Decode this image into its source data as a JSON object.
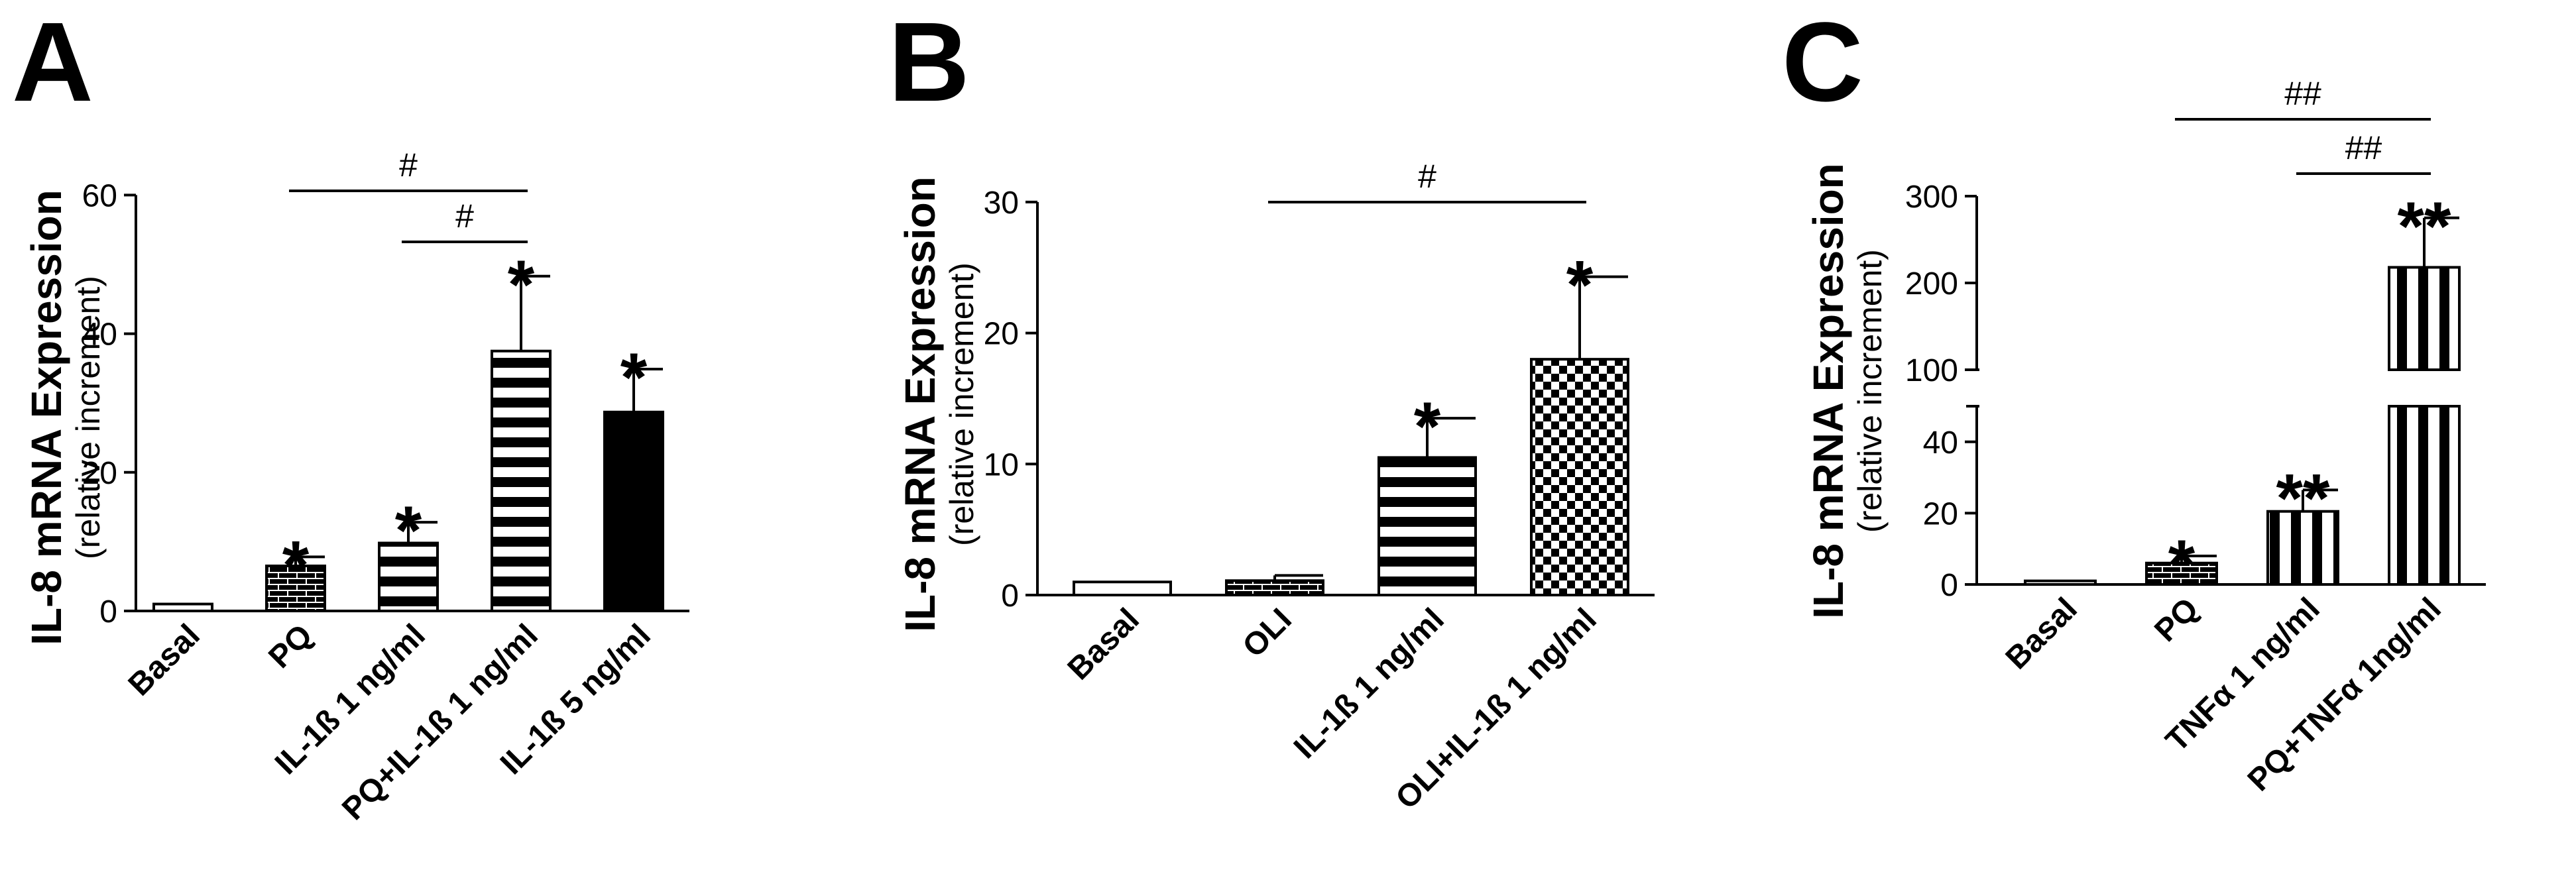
{
  "colors": {
    "ink": "#000000",
    "paper": "#ffffff"
  },
  "chart_data": [
    {
      "panel": "A",
      "type": "bar",
      "ylabel": "IL-8 mRNA Expression",
      "ysublabel": "(relative increment)",
      "ylim": [
        0,
        60
      ],
      "yticks": [
        0,
        20,
        40,
        60
      ],
      "categories": [
        "Basal",
        "PQ",
        "IL-1ß 1 ng/ml",
        "PQ+IL-1ß 1 ng/ml",
        "IL-1ß 5 ng/ml"
      ],
      "values": [
        1,
        6.5,
        9.8,
        37.5,
        28.7
      ],
      "errors": [
        0,
        1.3,
        3,
        10.8,
        6.2
      ],
      "patterns": [
        "white",
        "brick",
        "hstripe",
        "hstripe",
        "solid"
      ],
      "significance": [
        "",
        "*",
        "*",
        "*",
        "*"
      ],
      "brackets": [
        {
          "from": 1,
          "to": 3,
          "label": "#"
        },
        {
          "from": 2,
          "to": 3,
          "label": "#"
        }
      ]
    },
    {
      "panel": "B",
      "type": "bar",
      "ylabel": "IL-8 mRNA Expression",
      "ysublabel": "(relative increment)",
      "ylim": [
        0,
        30
      ],
      "yticks": [
        0,
        10,
        20,
        30
      ],
      "categories": [
        "Basal",
        "OLI",
        "IL-1ß 1 ng/ml",
        "OLI+IL-1ß 1 ng/ml"
      ],
      "values": [
        1,
        1.1,
        10.5,
        18
      ],
      "errors": [
        0,
        0.4,
        3,
        6.3
      ],
      "patterns": [
        "white",
        "brick",
        "hstripe",
        "checker"
      ],
      "significance": [
        "",
        "",
        "*",
        "*"
      ],
      "brackets": [
        {
          "from": 1,
          "to": 3,
          "label": "#"
        }
      ]
    },
    {
      "panel": "C",
      "type": "bar",
      "ylabel": "IL-8 mRNA Expression",
      "ysublabel": "(relative increment)",
      "broken_axis": {
        "lower": [
          0,
          50
        ],
        "upper": [
          100,
          300
        ]
      },
      "yticks_lower": [
        0,
        20,
        40
      ],
      "yticks_upper": [
        100,
        200,
        300
      ],
      "categories": [
        "Basal",
        "PQ",
        "TNFα 1 ng/ml",
        "PQ+TNFα 1ng/ml"
      ],
      "values": [
        1,
        6,
        20.5,
        218
      ],
      "errors": [
        0,
        2,
        6,
        57
      ],
      "patterns": [
        "white",
        "brick",
        "vstripe",
        "vstripe"
      ],
      "significance": [
        "",
        "*",
        "**",
        "**"
      ],
      "brackets": [
        {
          "from": 1,
          "to": 3,
          "label": "##"
        },
        {
          "from": 2,
          "to": 3,
          "label": "##"
        }
      ]
    }
  ]
}
